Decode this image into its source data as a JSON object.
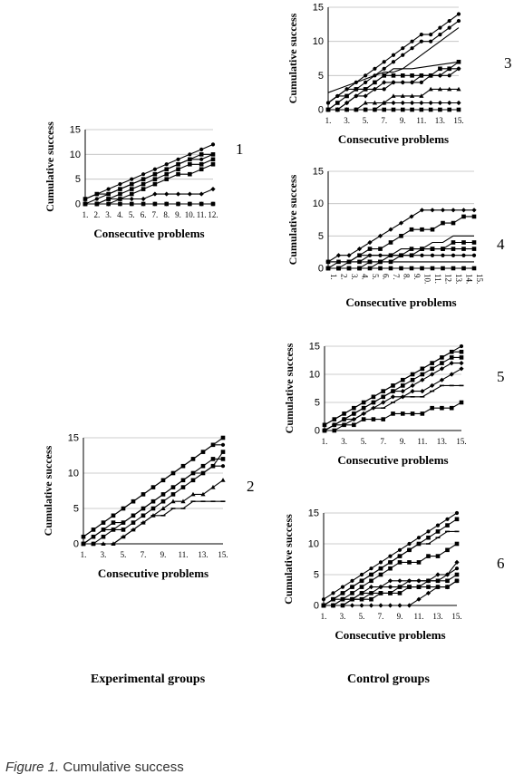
{
  "caption": {
    "prefix": "Figure 1.",
    "text": "Cumulative success"
  },
  "group_labels": {
    "experimental": "Experimental groups",
    "control": "Control groups"
  },
  "chart_data": [
    {
      "id": "1",
      "type": "line",
      "xlabel": "Consecutive problems",
      "ylabel": "Cumulative success",
      "ylim": [
        0,
        15
      ],
      "yticks": [
        0,
        5,
        10,
        15
      ],
      "x_tick_labels": [
        "1.",
        "2.",
        "3.",
        "4.",
        "5.",
        "6.",
        "7.",
        "8.",
        "9.",
        "10.",
        "11.",
        "12."
      ],
      "series": [
        {
          "marker": "circle",
          "values": [
            1,
            2,
            3,
            4,
            5,
            6,
            7,
            8,
            9,
            10,
            11,
            12
          ]
        },
        {
          "marker": "square",
          "values": [
            1,
            2,
            2,
            3,
            4,
            5,
            6,
            7,
            8,
            9,
            10,
            10
          ]
        },
        {
          "marker": "circle",
          "values": [
            0,
            1,
            2,
            3,
            4,
            5,
            6,
            7,
            8,
            9,
            9,
            10
          ]
        },
        {
          "marker": "square",
          "values": [
            0,
            0,
            1,
            2,
            3,
            4,
            5,
            6,
            7,
            8,
            8,
            9
          ]
        },
        {
          "marker": "square",
          "values": [
            0,
            0,
            1,
            1,
            2,
            3,
            4,
            5,
            6,
            6,
            7,
            8
          ]
        },
        {
          "marker": "diamond",
          "values": [
            0,
            0,
            0,
            1,
            1,
            1,
            2,
            2,
            2,
            2,
            2,
            3
          ]
        },
        {
          "marker": "diamond",
          "values": [
            0,
            0,
            0,
            0,
            0,
            0,
            0,
            0,
            0,
            0,
            0,
            0
          ]
        },
        {
          "marker": "square",
          "values": [
            0,
            0,
            0,
            0,
            0,
            0,
            0,
            0,
            0,
            0,
            0,
            0
          ]
        }
      ]
    },
    {
      "id": "2",
      "type": "line",
      "xlabel": "Consecutive problems",
      "ylabel": "Cumulative success",
      "ylim": [
        0,
        15
      ],
      "yticks": [
        0,
        5,
        10,
        15
      ],
      "x_tick_labels": [
        "1.",
        "",
        "3.",
        "",
        "5.",
        "",
        "7.",
        "",
        "9.",
        "",
        "11.",
        "",
        "13.",
        "",
        "15."
      ],
      "series": [
        {
          "marker": "square",
          "values": [
            1,
            2,
            3,
            4,
            5,
            6,
            7,
            8,
            9,
            10,
            11,
            12,
            13,
            14,
            15
          ]
        },
        {
          "marker": "circle",
          "values": [
            1,
            2,
            3,
            4,
            5,
            6,
            7,
            8,
            9,
            10,
            11,
            12,
            13,
            14,
            14
          ]
        },
        {
          "marker": "square",
          "values": [
            0,
            1,
            2,
            3,
            3,
            4,
            5,
            6,
            7,
            8,
            9,
            10,
            11,
            12,
            12
          ]
        },
        {
          "marker": "circle",
          "values": [
            0,
            1,
            2,
            2,
            3,
            4,
            5,
            6,
            7,
            8,
            9,
            10,
            10,
            11,
            11
          ]
        },
        {
          "marker": "square",
          "values": [
            0,
            0,
            1,
            2,
            2,
            3,
            4,
            5,
            6,
            7,
            8,
            9,
            10,
            11,
            13
          ]
        },
        {
          "marker": "triangle",
          "values": [
            0,
            0,
            0,
            0,
            1,
            2,
            3,
            4,
            5,
            6,
            6,
            7,
            7,
            8,
            9
          ]
        },
        {
          "marker": "dash",
          "values": [
            0,
            0,
            0,
            0,
            1,
            2,
            3,
            4,
            4,
            5,
            5,
            6,
            6,
            6,
            6
          ]
        }
      ]
    },
    {
      "id": "3",
      "type": "line",
      "xlabel": "Consecutive problems",
      "ylabel": "Cumulative success",
      "ylim": [
        0,
        15
      ],
      "yticks": [
        0,
        5,
        10,
        15
      ],
      "x_tick_labels": [
        "1.",
        "",
        "3.",
        "",
        "5.",
        "",
        "7.",
        "",
        "9.",
        "",
        "11.",
        "",
        "13.",
        "",
        "15."
      ],
      "series": [
        {
          "marker": "circle",
          "values": [
            1,
            2,
            3,
            4,
            5,
            6,
            7,
            8,
            9,
            10,
            11,
            11,
            12,
            13,
            14
          ]
        },
        {
          "marker": "circle",
          "values": [
            1,
            2,
            3,
            3,
            4,
            5,
            6,
            7,
            8,
            9,
            10,
            10,
            11,
            12,
            13
          ]
        },
        {
          "marker": "none",
          "values": [
            1,
            2,
            2,
            3,
            3,
            4,
            5,
            6,
            6,
            7,
            8,
            9,
            10,
            11,
            12
          ]
        },
        {
          "marker": "none",
          "values": [
            2.5,
            3,
            3.5,
            4,
            4.5,
            5,
            5.5,
            5.5,
            6,
            6,
            6.2,
            6.4,
            6.6,
            6.8,
            7
          ]
        },
        {
          "marker": "square",
          "values": [
            0,
            1,
            2,
            3,
            3,
            4,
            5,
            5,
            5,
            5,
            5,
            5,
            6,
            6,
            7
          ]
        },
        {
          "marker": "diamond",
          "values": [
            0,
            0,
            1,
            2,
            2,
            3,
            4,
            4,
            4,
            4,
            5,
            5,
            5,
            6,
            6
          ]
        },
        {
          "marker": "circle",
          "values": [
            0,
            0,
            1,
            2,
            3,
            3,
            3,
            4,
            4,
            4,
            4,
            5,
            5,
            5,
            6
          ]
        },
        {
          "marker": "triangle",
          "values": [
            0,
            0,
            0,
            0,
            1,
            1,
            1,
            2,
            2,
            2,
            2,
            3,
            3,
            3,
            3
          ]
        },
        {
          "marker": "diamond",
          "values": [
            0,
            0,
            0,
            0,
            0,
            0,
            1,
            1,
            1,
            1,
            1,
            1,
            1,
            1,
            1
          ]
        },
        {
          "marker": "square",
          "values": [
            0,
            0,
            0,
            0,
            0,
            0,
            0,
            0,
            0,
            0,
            0,
            0,
            0,
            0,
            0
          ]
        }
      ]
    },
    {
      "id": "4",
      "type": "line",
      "xlabel": "Consecutive  problems",
      "ylabel": "Cumulative success",
      "ylim": [
        0,
        15
      ],
      "yticks": [
        0,
        5,
        10,
        15
      ],
      "x_tick_labels": [
        "1.",
        "2.",
        "3.",
        "4.",
        "5.",
        "6.",
        "7.",
        "8.",
        "9.",
        "10.",
        "11.",
        "12.",
        "13.",
        "14.",
        "15."
      ],
      "series": [
        {
          "marker": "diamond",
          "values": [
            1,
            2,
            2,
            3,
            4,
            5,
            6,
            7,
            8,
            9,
            9,
            9,
            9,
            9,
            9
          ]
        },
        {
          "marker": "square",
          "values": [
            1,
            1,
            1,
            2,
            3,
            3,
            4,
            5,
            6,
            6,
            6,
            7,
            7,
            8,
            8
          ]
        },
        {
          "marker": "none",
          "values": [
            0,
            1,
            1,
            2,
            2,
            2,
            2,
            3,
            3,
            3,
            4,
            4,
            5,
            5,
            5
          ]
        },
        {
          "marker": "square",
          "values": [
            0,
            0,
            1,
            1,
            1,
            1,
            2,
            2,
            3,
            3,
            3,
            3,
            4,
            4,
            4
          ]
        },
        {
          "marker": "square",
          "values": [
            0,
            0,
            0,
            0,
            1,
            1,
            1,
            2,
            2,
            3,
            3,
            3,
            3,
            3,
            3
          ]
        },
        {
          "marker": "circle",
          "values": [
            1,
            1,
            1,
            1,
            2,
            2,
            2,
            2,
            2,
            2,
            2,
            2,
            2,
            2,
            2
          ]
        },
        {
          "marker": "none",
          "values": [
            0,
            0,
            0,
            0,
            0,
            1,
            1,
            1,
            1,
            1,
            1,
            1,
            1,
            1,
            1
          ]
        },
        {
          "marker": "square",
          "values": [
            0,
            0,
            0,
            0,
            0,
            0,
            0,
            0,
            0,
            0,
            0,
            0,
            0,
            0,
            0
          ]
        }
      ]
    },
    {
      "id": "5",
      "type": "line",
      "xlabel": "Consecutive problems",
      "ylabel": "Cumulative success",
      "ylim": [
        0,
        15
      ],
      "yticks": [
        0,
        5,
        10,
        15
      ],
      "x_tick_labels": [
        "1.",
        "",
        "3.",
        "",
        "5.",
        "",
        "7.",
        "",
        "9.",
        "",
        "11.",
        "",
        "13.",
        "",
        "15."
      ],
      "series": [
        {
          "marker": "circle",
          "values": [
            1,
            2,
            3,
            4,
            5,
            6,
            7,
            8,
            9,
            10,
            11,
            12,
            13,
            14,
            15
          ]
        },
        {
          "marker": "square",
          "values": [
            1,
            2,
            3,
            4,
            5,
            6,
            7,
            8,
            9,
            10,
            11,
            12,
            13,
            14,
            14
          ]
        },
        {
          "marker": "square",
          "values": [
            0,
            1,
            2,
            3,
            4,
            5,
            6,
            7,
            8,
            9,
            10,
            11,
            12,
            13,
            13
          ]
        },
        {
          "marker": "diamond",
          "values": [
            0,
            1,
            2,
            3,
            4,
            5,
            6,
            7,
            7,
            8,
            9,
            10,
            11,
            12,
            12
          ]
        },
        {
          "marker": "diamond",
          "values": [
            0,
            1,
            2,
            2,
            3,
            4,
            5,
            6,
            6,
            7,
            7,
            8,
            9,
            10,
            11
          ]
        },
        {
          "marker": "dash",
          "values": [
            0,
            1,
            1,
            2,
            3,
            4,
            4,
            5,
            6,
            6,
            6,
            7,
            8,
            8,
            8
          ]
        },
        {
          "marker": "square",
          "values": [
            0,
            0,
            1,
            1,
            2,
            2,
            2,
            3,
            3,
            3,
            3,
            4,
            4,
            4,
            5
          ]
        }
      ]
    },
    {
      "id": "6",
      "type": "line",
      "xlabel": "Consecutive problems",
      "ylabel": "Cumulative success",
      "ylim": [
        0,
        15
      ],
      "yticks": [
        0,
        5,
        10,
        15
      ],
      "x_tick_labels": [
        "1.",
        "",
        "3.",
        "",
        "5.",
        "",
        "7.",
        "",
        "9.",
        "",
        "11.",
        "",
        "13.",
        "",
        "15."
      ],
      "series": [
        {
          "marker": "circle",
          "values": [
            1,
            2,
            3,
            4,
            5,
            6,
            7,
            8,
            9,
            10,
            11,
            12,
            13,
            14,
            15
          ]
        },
        {
          "marker": "square",
          "values": [
            0,
            1,
            2,
            3,
            4,
            5,
            6,
            7,
            8,
            9,
            10,
            11,
            12,
            13,
            14
          ]
        },
        {
          "marker": "dash",
          "values": [
            0,
            1,
            2,
            3,
            4,
            5,
            6,
            7,
            8,
            9,
            10,
            10,
            11,
            12,
            12
          ]
        },
        {
          "marker": "square",
          "values": [
            0,
            1,
            1,
            2,
            3,
            4,
            5,
            6,
            7,
            7,
            7,
            8,
            8,
            9,
            10
          ]
        },
        {
          "marker": "diamond",
          "values": [
            0,
            0,
            1,
            1,
            2,
            3,
            3,
            4,
            4,
            4,
            4,
            4,
            5,
            5,
            7
          ]
        },
        {
          "marker": "circle",
          "values": [
            0,
            0,
            0,
            1,
            1,
            2,
            3,
            3,
            3,
            4,
            4,
            4,
            4,
            5,
            6
          ]
        },
        {
          "marker": "square",
          "values": [
            0,
            0,
            1,
            1,
            2,
            2,
            2,
            2,
            3,
            3,
            3,
            4,
            4,
            4,
            5
          ]
        },
        {
          "marker": "square",
          "values": [
            0,
            0,
            0,
            1,
            1,
            1,
            2,
            2,
            2,
            3,
            3,
            3,
            3,
            3,
            4
          ]
        },
        {
          "marker": "diamond",
          "values": [
            0,
            0,
            0,
            0,
            0,
            0,
            0,
            0,
            0,
            0,
            1,
            2,
            3,
            3,
            4
          ]
        }
      ]
    }
  ]
}
